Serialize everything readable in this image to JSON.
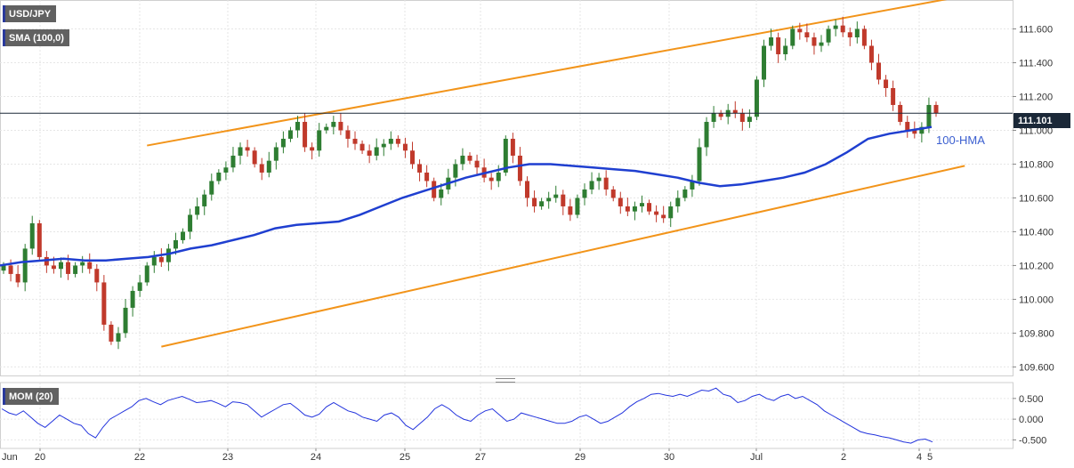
{
  "symbol": "USD/JPY",
  "indicator_label": "SMA (100,0)",
  "momentum_label": "MOM (20)",
  "current_price": "111.101",
  "hma_label": "100-HMA",
  "colors": {
    "up_candle": "#2e7d32",
    "down_candle": "#c0392b",
    "hma_line": "#1f3fd0",
    "trendline": "#f2941a",
    "momentum_line": "#2233dd",
    "price_line": "#1b2838"
  },
  "chart_data": {
    "type": "candlestick",
    "main_panel": {
      "y_ticks": [
        "111.600",
        "111.400",
        "111.200",
        "111.000",
        "110.800",
        "110.600",
        "110.400",
        "110.200",
        "110.000",
        "109.800",
        "109.600"
      ],
      "ylim": [
        109.56,
        111.75
      ],
      "current_price": 111.101,
      "x_labels": [
        "Jun",
        "20",
        "22",
        "23",
        "24",
        "25",
        "27",
        "29",
        "30",
        "Jul",
        "2",
        "4",
        "5"
      ],
      "close_series": [
        110.2,
        110.15,
        110.1,
        110.3,
        110.45,
        110.25,
        110.2,
        110.18,
        110.22,
        110.15,
        110.2,
        110.22,
        110.18,
        110.1,
        109.85,
        109.75,
        109.8,
        109.95,
        110.05,
        110.1,
        110.2,
        110.25,
        110.22,
        110.3,
        110.35,
        110.4,
        110.5,
        110.55,
        110.62,
        110.7,
        110.75,
        110.78,
        110.85,
        110.9,
        110.88,
        110.8,
        110.75,
        110.82,
        110.9,
        110.95,
        111.0,
        111.05,
        110.9,
        110.88,
        111.0,
        111.02,
        111.05,
        111.0,
        110.95,
        110.92,
        110.88,
        110.85,
        110.9,
        110.92,
        110.95,
        110.92,
        110.88,
        110.8,
        110.75,
        110.7,
        110.6,
        110.65,
        110.72,
        110.8,
        110.85,
        110.82,
        110.78,
        110.72,
        110.7,
        110.75,
        110.95,
        110.85,
        110.7,
        110.6,
        110.55,
        110.58,
        110.6,
        110.62,
        110.55,
        110.5,
        110.6,
        110.65,
        110.7,
        110.72,
        110.65,
        110.6,
        110.55,
        110.52,
        110.55,
        110.57,
        110.52,
        110.5,
        110.48,
        110.55,
        110.6,
        110.65,
        110.7,
        110.9,
        111.05,
        111.1,
        111.08,
        111.12,
        111.1,
        111.05,
        111.08,
        111.3,
        111.5,
        111.55,
        111.45,
        111.5,
        111.6,
        111.58,
        111.55,
        111.5,
        111.52,
        111.6,
        111.62,
        111.58,
        111.55,
        111.6,
        111.5,
        111.4,
        111.3,
        111.25,
        111.15,
        111.05,
        111.0,
        110.98,
        111.02,
        111.15,
        111.1
      ],
      "hma_100": [
        110.2,
        110.22,
        110.23,
        110.24,
        110.23,
        110.23,
        110.24,
        110.25,
        110.27,
        110.3,
        110.32,
        110.35,
        110.38,
        110.42,
        110.44,
        110.45,
        110.46,
        110.5,
        110.55,
        110.6,
        110.64,
        110.68,
        110.72,
        110.75,
        110.78,
        110.8,
        110.8,
        110.79,
        110.78,
        110.77,
        110.76,
        110.74,
        110.72,
        110.69,
        110.67,
        110.68,
        110.7,
        110.72,
        110.75,
        110.8,
        110.87,
        110.95,
        110.98,
        111.0,
        111.02
      ],
      "hma_x_days": [
        "Jun",
        "20",
        "22",
        "23",
        "24",
        "25",
        "27",
        "29",
        "30",
        "Jul",
        "2",
        "4",
        "5"
      ],
      "trendlines": [
        {
          "name": "resistance",
          "from": {
            "bar": 20,
            "price": 110.91
          },
          "to": {
            "bar": 132,
            "price": 111.78
          }
        },
        {
          "name": "support",
          "from": {
            "bar": 22,
            "price": 109.72
          },
          "to": {
            "bar": 134,
            "price": 110.79
          }
        }
      ]
    },
    "momentum_panel": {
      "y_ticks": [
        "0.500",
        "0.000",
        "-0.500"
      ],
      "ylim": [
        -0.62,
        0.84
      ],
      "values": [
        0.25,
        0.15,
        0.1,
        0.2,
        0.05,
        -0.1,
        -0.2,
        -0.05,
        0.1,
        0.0,
        -0.1,
        -0.15,
        -0.35,
        -0.45,
        -0.2,
        0.0,
        0.1,
        0.2,
        0.3,
        0.45,
        0.5,
        0.42,
        0.35,
        0.45,
        0.5,
        0.55,
        0.48,
        0.4,
        0.42,
        0.45,
        0.38,
        0.3,
        0.42,
        0.4,
        0.35,
        0.2,
        0.05,
        0.15,
        0.25,
        0.35,
        0.38,
        0.25,
        0.1,
        0.05,
        0.12,
        0.3,
        0.4,
        0.3,
        0.2,
        0.15,
        0.05,
        0.0,
        -0.05,
        0.1,
        0.15,
        0.05,
        -0.15,
        -0.25,
        -0.1,
        0.05,
        0.25,
        0.35,
        0.25,
        0.1,
        0.0,
        -0.05,
        0.1,
        0.2,
        0.25,
        0.1,
        -0.05,
        0.0,
        0.15,
        0.1,
        0.05,
        0.0,
        -0.05,
        -0.1,
        -0.1,
        -0.05,
        0.05,
        0.1,
        0.0,
        -0.1,
        -0.05,
        0.05,
        0.15,
        0.3,
        0.42,
        0.5,
        0.6,
        0.62,
        0.58,
        0.55,
        0.6,
        0.55,
        0.62,
        0.7,
        0.68,
        0.75,
        0.6,
        0.55,
        0.4,
        0.45,
        0.55,
        0.6,
        0.5,
        0.45,
        0.55,
        0.6,
        0.5,
        0.55,
        0.45,
        0.35,
        0.2,
        0.1,
        0.0,
        -0.1,
        -0.2,
        -0.3,
        -0.35,
        -0.38,
        -0.42,
        -0.45,
        -0.5,
        -0.55,
        -0.58,
        -0.5,
        -0.48,
        -0.55
      ]
    }
  }
}
